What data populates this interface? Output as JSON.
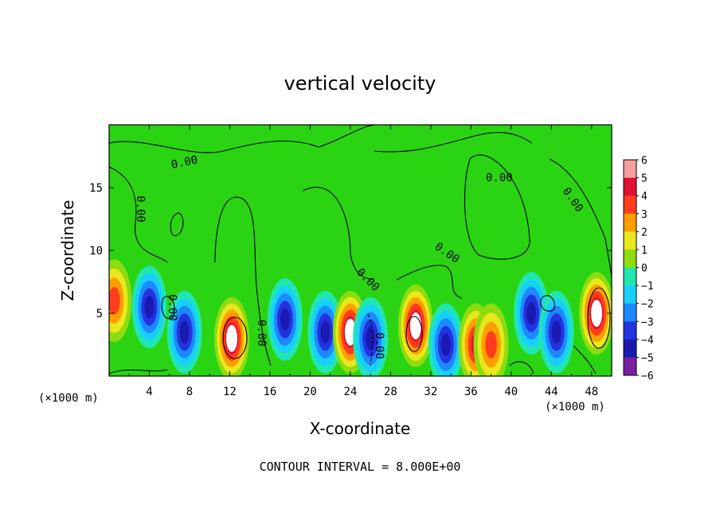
{
  "chart_data": {
    "type": "heatmap",
    "title": "vertical velocity",
    "xlabel": "X-coordinate",
    "ylabel": "Z-coordinate",
    "x_unit": "(×1000 m)",
    "footer": "CONTOUR INTERVAL = 8.000E+00",
    "xlim": [
      0,
      50
    ],
    "ylim": [
      0,
      20
    ],
    "x_ticks": [
      4,
      8,
      12,
      16,
      20,
      24,
      28,
      32,
      36,
      40,
      44,
      48
    ],
    "y_ticks": [
      5,
      10,
      15
    ],
    "colorbar": {
      "range": [
        -6,
        6
      ],
      "ticks": [
        6,
        5,
        4,
        3,
        2,
        1,
        0,
        -1,
        -2,
        -3,
        -4,
        -5,
        -6
      ],
      "tick_labels": [
        "6",
        "5",
        "4",
        "3",
        "2",
        "1",
        "0",
        "−1",
        "−2",
        "−3",
        "−4",
        "−5",
        "−6"
      ]
    },
    "contour_labels": [
      "0.00",
      "0.00",
      "0.00",
      "0.00",
      "0.00",
      "0.00",
      "0.00",
      "0.00",
      "0.00"
    ],
    "features": [
      {
        "x": 0.5,
        "z": 6,
        "value": 3.5
      },
      {
        "x": 4.0,
        "z": 5.5,
        "value": -5
      },
      {
        "x": 7.5,
        "z": 3.5,
        "value": -5
      },
      {
        "x": 12.2,
        "z": 3.0,
        "value": 6
      },
      {
        "x": 17.5,
        "z": 4.5,
        "value": -4.5
      },
      {
        "x": 21.5,
        "z": 3.5,
        "value": -4.5
      },
      {
        "x": 24.0,
        "z": 3.5,
        "value": 5.5
      },
      {
        "x": 26.0,
        "z": 3.0,
        "value": -5
      },
      {
        "x": 30.5,
        "z": 4.0,
        "value": 6
      },
      {
        "x": 33.5,
        "z": 2.5,
        "value": -5
      },
      {
        "x": 36.5,
        "z": 2.5,
        "value": 4.5
      },
      {
        "x": 38.0,
        "z": 2.5,
        "value": 4
      },
      {
        "x": 42.0,
        "z": 5.0,
        "value": -4.5
      },
      {
        "x": 44.5,
        "z": 3.5,
        "value": -5
      },
      {
        "x": 48.5,
        "z": 5.0,
        "value": 6
      }
    ]
  }
}
